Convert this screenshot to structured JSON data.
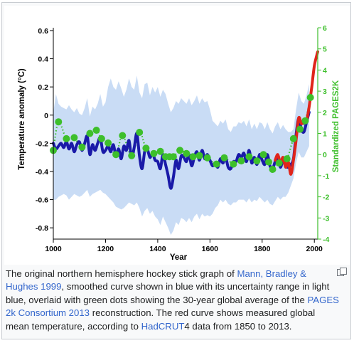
{
  "figure": {
    "chart_data": {
      "type": "line",
      "xlabel": "Year",
      "ylabel": "Temperature anomaly (°C)",
      "y2label": "Standardized PAGES2K",
      "xlim": [
        1000,
        2013
      ],
      "ylim": [
        -0.88,
        0.62
      ],
      "y2lim": [
        -4,
        6
      ],
      "x_ticks": [
        "1000",
        "1200",
        "1400",
        "1600",
        "1800",
        "2000"
      ],
      "y_ticks": [
        "0.6",
        "0.4",
        "0.2",
        "0",
        "-0.2",
        "-0.4",
        "-0.6",
        "-0.8"
      ],
      "y2_ticks": [
        "6",
        "5",
        "4",
        "3",
        "2",
        "1",
        "0",
        "-1",
        "-2",
        "-3",
        "-4"
      ],
      "grid": false,
      "colors": {
        "uncertainty": "#c9dcf5",
        "mbh99": "#1a1aa8",
        "pages2k": "#3dbf2b",
        "hadcrut4": "#e0251b",
        "right_axis": "#3dbf2b"
      },
      "series": [
        {
          "style": "blue thick line with light-blue uncertainty band",
          "x": [
            1000,
            1010,
            1020,
            1030,
            1040,
            1050,
            1060,
            1070,
            1080,
            1090,
            1100,
            1110,
            1120,
            1130,
            1140,
            1150,
            1160,
            1170,
            1180,
            1190,
            1200,
            1210,
            1220,
            1230,
            1240,
            1250,
            1260,
            1270,
            1280,
            1290,
            1300,
            1310,
            1320,
            1330,
            1340,
            1350,
            1360,
            1370,
            1380,
            1390,
            1400,
            1410,
            1420,
            1430,
            1440,
            1450,
            1460,
            1470,
            1480,
            1490,
            1500,
            1510,
            1520,
            1530,
            1540,
            1550,
            1560,
            1570,
            1580,
            1590,
            1600,
            1610,
            1620,
            1630,
            1640,
            1650,
            1660,
            1670,
            1680,
            1690,
            1700,
            1710,
            1720,
            1730,
            1740,
            1750,
            1760,
            1770,
            1780,
            1790,
            1800,
            1810,
            1820,
            1830,
            1840,
            1850,
            1860,
            1870,
            1880,
            1890,
            1900,
            1910,
            1920,
            1930,
            1940,
            1950,
            1960,
            1970,
            1980
          ],
          "values": [
            -0.2,
            -0.24,
            -0.22,
            -0.2,
            -0.23,
            -0.19,
            -0.24,
            -0.2,
            -0.26,
            -0.21,
            -0.19,
            -0.25,
            -0.2,
            -0.15,
            -0.28,
            -0.21,
            -0.25,
            -0.2,
            -0.16,
            -0.26,
            -0.25,
            -0.22,
            -0.26,
            -0.21,
            -0.29,
            -0.24,
            -0.31,
            -0.22,
            -0.25,
            -0.18,
            -0.3,
            -0.23,
            -0.13,
            -0.29,
            -0.38,
            -0.26,
            -0.24,
            -0.3,
            -0.27,
            -0.32,
            -0.33,
            -0.38,
            -0.28,
            -0.35,
            -0.43,
            -0.52,
            -0.44,
            -0.32,
            -0.38,
            -0.29,
            -0.3,
            -0.33,
            -0.28,
            -0.36,
            -0.3,
            -0.26,
            -0.32,
            -0.25,
            -0.31,
            -0.28,
            -0.32,
            -0.36,
            -0.34,
            -0.37,
            -0.31,
            -0.34,
            -0.3,
            -0.37,
            -0.38,
            -0.33,
            -0.33,
            -0.28,
            -0.3,
            -0.27,
            -0.33,
            -0.25,
            -0.34,
            -0.3,
            -0.35,
            -0.28,
            -0.32,
            -0.35,
            -0.28,
            -0.36,
            -0.38,
            -0.33,
            -0.3,
            -0.37,
            -0.32,
            -0.36,
            -0.37,
            -0.35,
            -0.31,
            -0.14,
            -0.02,
            -0.1,
            -0.12,
            -0.05,
            0.02
          ],
          "band_lower": [
            -0.6,
            -0.6,
            -0.58,
            -0.57,
            -0.56,
            -0.57,
            -0.6,
            -0.58,
            -0.56,
            -0.57,
            -0.58,
            -0.57,
            -0.55,
            -0.53,
            -0.58,
            -0.56,
            -0.55,
            -0.54,
            -0.53,
            -0.55,
            -0.56,
            -0.58,
            -0.6,
            -0.62,
            -0.65,
            -0.66,
            -0.67,
            -0.66,
            -0.64,
            -0.62,
            -0.63,
            -0.64,
            -0.62,
            -0.66,
            -0.72,
            -0.68,
            -0.66,
            -0.7,
            -0.68,
            -0.72,
            -0.74,
            -0.78,
            -0.72,
            -0.76,
            -0.8,
            -0.85,
            -0.82,
            -0.76,
            -0.78,
            -0.73,
            -0.74,
            -0.76,
            -0.73,
            -0.76,
            -0.72,
            -0.7,
            -0.74,
            -0.7,
            -0.72,
            -0.71,
            -0.72,
            -0.7,
            -0.66,
            -0.64,
            -0.6,
            -0.62,
            -0.6,
            -0.63,
            -0.64,
            -0.62,
            -0.62,
            -0.6,
            -0.6,
            -0.6,
            -0.62,
            -0.59,
            -0.62,
            -0.6,
            -0.61,
            -0.58,
            -0.6,
            -0.62,
            -0.6,
            -0.63,
            -0.64,
            -0.61,
            -0.58,
            -0.6,
            -0.58,
            -0.58,
            -0.55,
            -0.5,
            -0.45,
            -0.34,
            -0.26,
            -0.3,
            -0.3,
            -0.26,
            -0.22
          ],
          "band_upper": [
            0.02,
            0.15,
            0.08,
            0.06,
            0.05,
            0.04,
            0.07,
            0.04,
            0.02,
            0.05,
            0.01,
            0.0,
            0.05,
            0.12,
            -0.01,
            0.06,
            0.04,
            0.08,
            0.15,
            0.06,
            0.09,
            0.2,
            0.26,
            0.2,
            0.18,
            0.24,
            0.19,
            0.13,
            0.18,
            0.26,
            0.2,
            0.18,
            0.28,
            0.16,
            0.12,
            0.22,
            0.23,
            0.14,
            0.2,
            0.16,
            0.2,
            0.13,
            0.18,
            0.15,
            0.08,
            0.02,
            0.05,
            0.1,
            0.08,
            0.12,
            0.1,
            0.08,
            0.12,
            0.07,
            0.1,
            0.14,
            0.08,
            0.12,
            0.09,
            0.1,
            0.04,
            -0.04,
            -0.06,
            -0.08,
            -0.04,
            -0.06,
            -0.03,
            -0.1,
            -0.12,
            -0.08,
            -0.08,
            -0.05,
            -0.06,
            -0.04,
            -0.08,
            -0.03,
            -0.1,
            -0.06,
            -0.1,
            -0.05,
            -0.06,
            -0.1,
            -0.05,
            -0.1,
            -0.13,
            -0.08,
            -0.05,
            -0.1,
            -0.07,
            -0.1,
            -0.12,
            -0.12,
            -0.1,
            0.04,
            0.16,
            0.1,
            0.08,
            0.14,
            0.22
          ]
        },
        {
          "style": "green dots, 30-year averages, right axis",
          "x": [
            1000,
            1020,
            1050,
            1080,
            1110,
            1140,
            1165,
            1185,
            1210,
            1240,
            1265,
            1300,
            1330,
            1355,
            1385,
            1410,
            1430,
            1445,
            1460,
            1485,
            1510,
            1535,
            1560,
            1590,
            1625,
            1655,
            1690,
            1720,
            1750,
            1780,
            1805,
            1825,
            1840,
            1865,
            1895,
            1920,
            1945,
            1965,
            1985
          ],
          "values": [
            0.2,
            1.55,
            0.75,
            0.8,
            0.35,
            1.0,
            1.15,
            0.75,
            0.55,
            0.0,
            0.9,
            -0.05,
            1.05,
            0.3,
            0.05,
            0.15,
            -0.1,
            -0.1,
            -0.1,
            0.2,
            0.05,
            -0.1,
            -0.05,
            -0.15,
            -0.45,
            -0.15,
            -0.45,
            -0.3,
            -0.1,
            -0.3,
            0.0,
            -0.35,
            -0.7,
            -0.4,
            -0.2,
            0.75,
            1.2,
            1.6,
            2.7
          ]
        },
        {
          "style": "red thick line, HadCRUT4 1850–2013",
          "x": [
            1850,
            1860,
            1870,
            1880,
            1890,
            1900,
            1910,
            1920,
            1930,
            1940,
            1950,
            1960,
            1970,
            1980,
            1990,
            2000,
            2010,
            2013
          ],
          "values": [
            -0.32,
            -0.28,
            -0.34,
            -0.3,
            -0.37,
            -0.33,
            -0.42,
            -0.32,
            -0.18,
            -0.02,
            -0.06,
            -0.05,
            -0.04,
            0.06,
            0.2,
            0.35,
            0.43,
            0.45
          ]
        }
      ]
    }
  },
  "caption": {
    "parts": [
      {
        "text": "The original northern hemisphere hockey stick graph of ",
        "link": false
      },
      {
        "text": "Mann, Bradley & Hughes 1999",
        "link": true
      },
      {
        "text": ", smoothed curve shown in blue with its uncertainty range in light blue, overlaid with green dots showing the 30-year global average of the ",
        "link": false
      },
      {
        "text": "PAGES 2k Consortium 2013",
        "link": true
      },
      {
        "text": " reconstruction. The red curve shows measured global mean temperature, according to ",
        "link": false
      },
      {
        "text": "HadCRUT",
        "link": true
      },
      {
        "text": "4 data from 1850 to 2013.",
        "link": false
      }
    ],
    "enlarge_icon": "enlarge-icon"
  }
}
